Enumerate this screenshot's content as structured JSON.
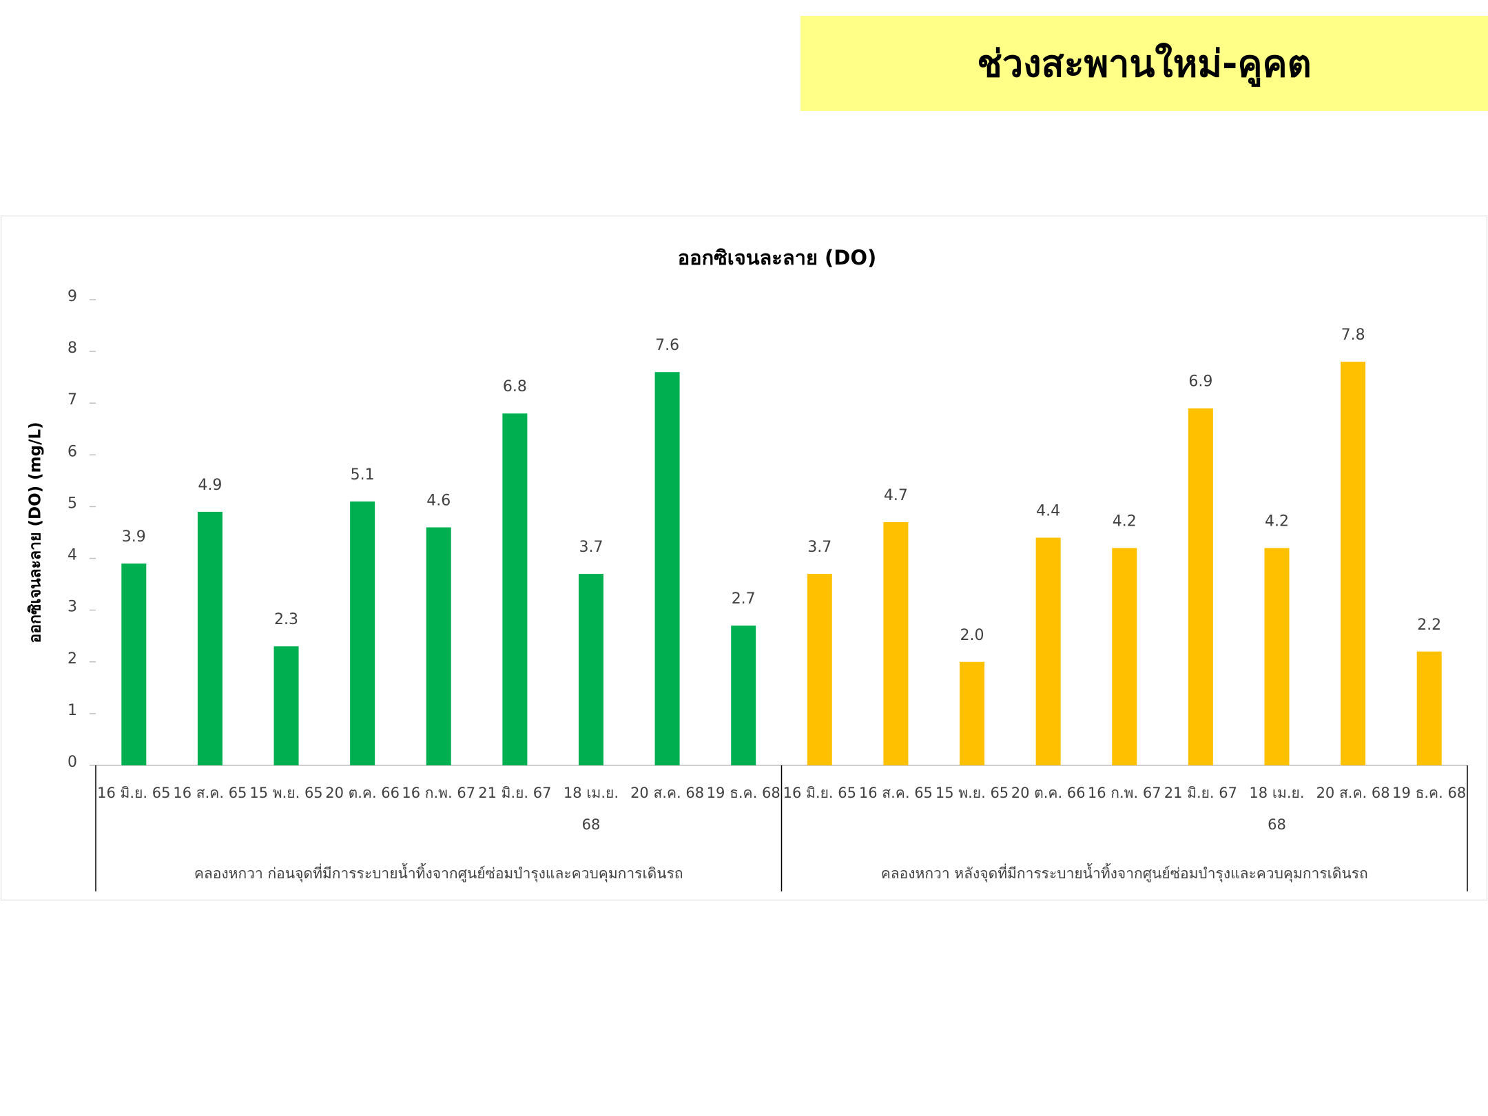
{
  "header": {
    "title": "ช่วงสะพานใหม่-คูคต"
  },
  "chart_data": {
    "type": "bar",
    "title": "ออกซิเจนละลาย (DO)",
    "y_label": "ออกซิเจนละลาย (DO) (mg/L)",
    "ylim": [
      0,
      9
    ],
    "yticks": [
      0,
      1,
      2,
      3,
      4,
      5,
      6,
      7,
      8,
      9
    ],
    "grid": false,
    "groups": [
      {
        "label": "คลองหกวา ก่อนจุดที่มีการระบายน้ำทิ้งจากศูนย์ซ่อมบำรุงและควบคุมการเดินรถ",
        "color": "#00b050",
        "categories": [
          "16 มิ.ย. 65",
          "16 ส.ค. 65",
          "15 พ.ย. 65",
          "20 ต.ค. 66",
          "16 ก.พ. 67",
          "21 มิ.ย. 67",
          "18 เม.ย. 68",
          "20 ส.ค. 68",
          "19 ธ.ค. 68"
        ],
        "values": [
          3.9,
          4.9,
          2.3,
          5.1,
          4.6,
          6.8,
          3.7,
          7.6,
          2.7
        ],
        "value_labels": [
          "3.9",
          "4.9",
          "2.3",
          "5.1",
          "4.6",
          "6.8",
          "3.7",
          "7.6",
          "2.7"
        ]
      },
      {
        "label": "คลองหกวา หลังจุดที่มีการระบายน้ำทิ้งจากศูนย์ซ่อมบำรุงและควบคุมการเดินรถ",
        "color": "#ffc000",
        "categories": [
          "16 มิ.ย. 65",
          "16 ส.ค. 65",
          "15 พ.ย. 65",
          "20 ต.ค. 66",
          "16 ก.พ. 67",
          "21 มิ.ย. 67",
          "18 เม.ย. 68",
          "20 ส.ค. 68",
          "19 ธ.ค. 68"
        ],
        "values": [
          3.7,
          4.7,
          2.0,
          4.4,
          4.2,
          6.9,
          4.2,
          7.8,
          2.2
        ],
        "value_labels": [
          "3.7",
          "4.7",
          "2.0",
          "4.4",
          "4.2",
          "6.9",
          "4.2",
          "7.8",
          "2.2"
        ]
      }
    ]
  }
}
